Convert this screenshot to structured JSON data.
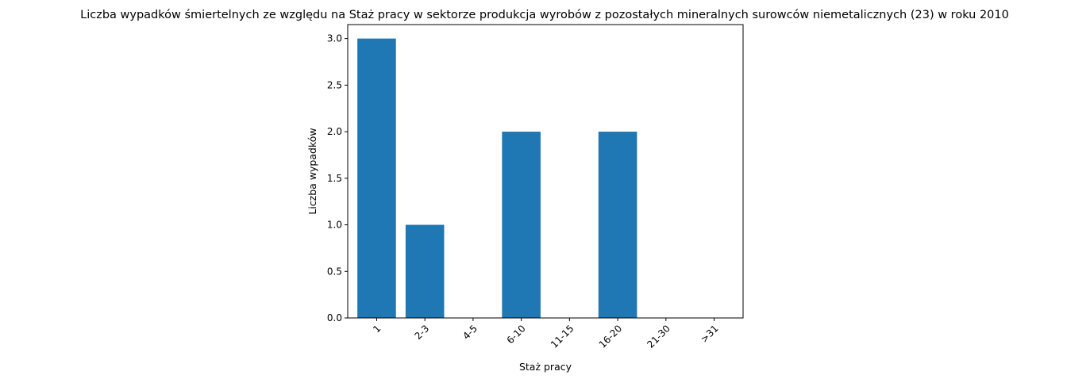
{
  "chart_data": {
    "type": "bar",
    "title": "Liczba wypadków śmiertelnych ze względu na Staż pracy w sektorze produkcja wyrobów z pozostałych mineralnych surowców niemetalicznych (23)  w roku 2010",
    "xlabel": "Staż pracy",
    "ylabel": "Liczba wypadków",
    "categories": [
      "1",
      "2-3",
      "4-5",
      "6-10",
      "11-15",
      "16-20",
      "21-30",
      ">31"
    ],
    "values": [
      3,
      1,
      0,
      2,
      0,
      2,
      0,
      0
    ],
    "ylim": [
      0,
      3.15
    ],
    "yticks": [
      "0.0",
      "0.5",
      "1.0",
      "1.5",
      "2.0",
      "2.5",
      "3.0"
    ],
    "bar_color": "#1f77b4",
    "grid": false,
    "legend": "none",
    "xtick_rotation": -45
  }
}
